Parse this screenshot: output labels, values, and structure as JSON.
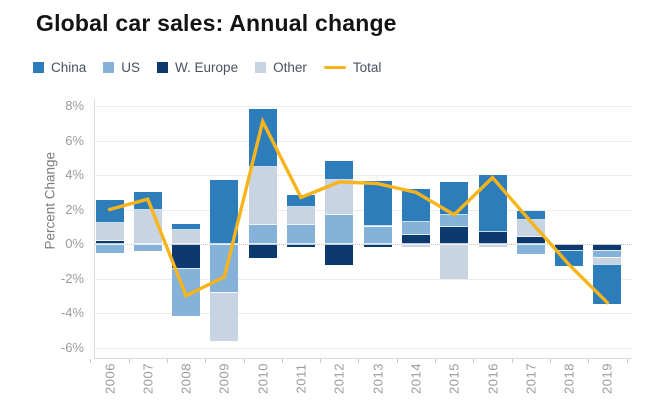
{
  "title": "Global car sales: Annual change",
  "legend": [
    {
      "label": "China",
      "color": "#2d7dbb",
      "type": "box"
    },
    {
      "label": "US",
      "color": "#84b2d9",
      "type": "box"
    },
    {
      "label": "W. Europe",
      "color": "#0d3a6e",
      "type": "box"
    },
    {
      "label": "Other",
      "color": "#c8d4e1",
      "type": "box"
    },
    {
      "label": "Total",
      "color": "#f7b41b",
      "type": "line"
    }
  ],
  "y_axis": {
    "title": "Percent Change",
    "tick_labels": [
      "8%",
      "6%",
      "4%",
      "2%",
      "0%",
      "-2%",
      "-4%",
      "-6%"
    ],
    "tick_values": [
      8,
      6,
      4,
      2,
      0,
      -2,
      -4,
      -6
    ]
  },
  "chart_data": {
    "type": "bar",
    "subtype": "stacked-bars-with-total-line",
    "categories": [
      "2006",
      "2007",
      "2008",
      "2009",
      "2010",
      "2011",
      "2012",
      "2013",
      "2014",
      "2015",
      "2016",
      "2017",
      "2018",
      "2019"
    ],
    "series": [
      {
        "name": "China",
        "key": "china",
        "color": "#2d7dbb",
        "values": [
          1.35,
          1.05,
          0.35,
          3.7,
          3.4,
          0.7,
          1.1,
          2.6,
          1.9,
          1.9,
          3.3,
          0.5,
          -0.9,
          -2.3
        ]
      },
      {
        "name": "US",
        "key": "us",
        "color": "#84b2d9",
        "values": [
          -0.55,
          -0.4,
          -2.8,
          -2.8,
          1.1,
          1.1,
          1.7,
          1.0,
          0.8,
          0.7,
          0.0,
          -0.6,
          0.0,
          -0.4
        ]
      },
      {
        "name": "W. Europe",
        "key": "weurope",
        "color": "#0d3a6e",
        "values": [
          0.2,
          0.0,
          -1.4,
          0.0,
          -0.8,
          -0.2,
          -1.2,
          -0.15,
          0.5,
          1.0,
          0.7,
          0.4,
          -0.35,
          -0.35
        ]
      },
      {
        "name": "Other",
        "key": "other",
        "color": "#c8d4e1",
        "values": [
          1.0,
          1.95,
          0.8,
          -2.8,
          3.35,
          1.05,
          2.0,
          0.05,
          -0.2,
          -2.0,
          -0.15,
          1.0,
          0.0,
          -0.4
        ]
      }
    ],
    "total_line": {
      "name": "Total",
      "color": "#f7b41b",
      "values": [
        2.0,
        2.6,
        -3.0,
        -1.9,
        7.1,
        2.7,
        3.6,
        3.5,
        3.0,
        1.7,
        3.85,
        1.3,
        -1.2,
        -3.4
      ]
    },
    "stacking_order": [
      "weurope",
      "us",
      "other",
      "china"
    ],
    "title": "Global car sales: Annual change",
    "xlabel": "",
    "ylabel": "Percent Change",
    "ylim": [
      -6.7,
      8.4
    ],
    "grid": true,
    "legend_position": "top-left"
  }
}
